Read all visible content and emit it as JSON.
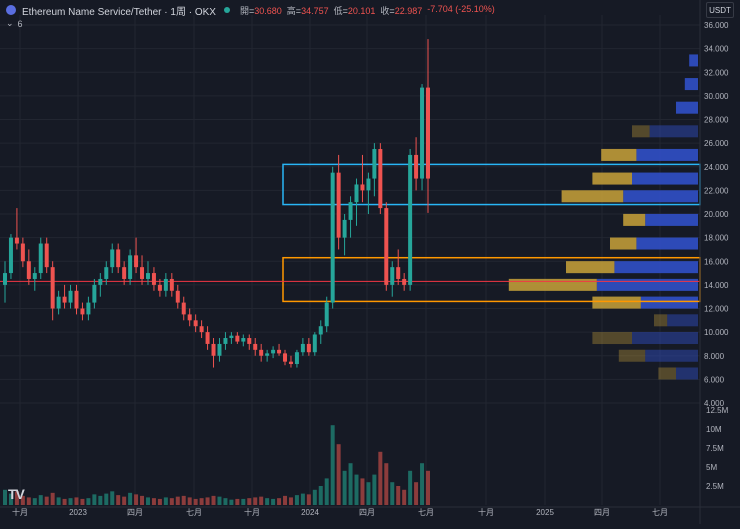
{
  "header": {
    "symbol": "Ethereum Name Service/Tether · 1周 · OKX",
    "ohlc": [
      {
        "key": "開",
        "value": "30.680"
      },
      {
        "key": "高",
        "value": "34.757"
      },
      {
        "key": "低",
        "value": "20.101"
      },
      {
        "key": "收",
        "value": "22.987"
      },
      {
        "key": "",
        "value": "-7.704 (-25.10%)"
      }
    ],
    "indicator_toggle": "6"
  },
  "currency": "USDT",
  "logo": "TV",
  "colors": {
    "background": "#161a25",
    "up": "#26a69a",
    "down": "#ef5350",
    "volume_up": "#1d6b63",
    "volume_down": "#8c3c3c",
    "zone_top": "#29b6f6",
    "zone_bottom": "#ff9800",
    "hline": "#f23645",
    "profile_gold": "#c9a33a",
    "profile_blue": "#3050c8"
  },
  "chart_data": {
    "type": "candlestick",
    "price_axis": {
      "min": 4,
      "max": 36,
      "ticks": [
        "36.000",
        "34.000",
        "32.000",
        "30.000",
        "28.000",
        "26.000",
        "24.000",
        "22.000",
        "20.000",
        "18.000",
        "16.000",
        "14.000",
        "12.000",
        "10.000",
        "8.000",
        "6.000",
        "4.000"
      ]
    },
    "volume_axis": {
      "max": 12.5,
      "ticks": [
        "12.5M",
        "10M",
        "7.5M",
        "5M",
        "2.5M"
      ]
    },
    "time_axis": [
      "十月",
      "2023",
      "四月",
      "七月",
      "十月",
      "2024",
      "四月",
      "七月",
      "十月",
      "2025",
      "四月",
      "七月"
    ],
    "zones": [
      {
        "name": "upper-zone",
        "low": 20.8,
        "high": 24.2
      },
      {
        "name": "lower-zone",
        "low": 12.6,
        "high": 16.3
      }
    ],
    "hline": 14.3,
    "candles": [
      [
        14.0,
        16.0,
        12.5,
        15.0
      ],
      [
        15.0,
        18.3,
        14.5,
        18.0
      ],
      [
        18.0,
        20.5,
        17.0,
        17.5
      ],
      [
        17.5,
        18.0,
        15.5,
        16.0
      ],
      [
        16.0,
        17.0,
        14.0,
        14.5
      ],
      [
        14.5,
        15.5,
        13.5,
        15.0
      ],
      [
        15.0,
        18.0,
        14.5,
        17.5
      ],
      [
        17.5,
        18.0,
        15.0,
        15.5
      ],
      [
        15.5,
        16.0,
        11.0,
        12.0
      ],
      [
        12.0,
        13.5,
        11.5,
        13.0
      ],
      [
        13.0,
        14.0,
        12.0,
        12.5
      ],
      [
        12.5,
        14.0,
        12.0,
        13.5
      ],
      [
        13.5,
        14.0,
        11.5,
        12.0
      ],
      [
        12.0,
        12.5,
        11.0,
        11.5
      ],
      [
        11.5,
        13.0,
        11.0,
        12.5
      ],
      [
        12.5,
        14.5,
        12.0,
        14.0
      ],
      [
        14.0,
        15.0,
        13.0,
        14.5
      ],
      [
        14.5,
        16.0,
        14.0,
        15.5
      ],
      [
        15.5,
        17.5,
        15.0,
        17.0
      ],
      [
        17.0,
        17.5,
        15.0,
        15.5
      ],
      [
        15.5,
        16.0,
        14.0,
        14.5
      ],
      [
        14.5,
        17.0,
        14.0,
        16.5
      ],
      [
        16.5,
        18.0,
        15.0,
        15.5
      ],
      [
        15.5,
        16.5,
        14.0,
        14.5
      ],
      [
        14.5,
        16.0,
        14.0,
        15.0
      ],
      [
        15.0,
        15.5,
        13.5,
        14.0
      ],
      [
        14.0,
        14.5,
        13.0,
        13.5
      ],
      [
        13.5,
        15.0,
        13.0,
        14.5
      ],
      [
        14.5,
        15.0,
        13.0,
        13.5
      ],
      [
        13.5,
        14.0,
        12.0,
        12.5
      ],
      [
        12.5,
        13.0,
        11.0,
        11.5
      ],
      [
        11.5,
        12.0,
        10.5,
        11.0
      ],
      [
        11.0,
        11.5,
        10.0,
        10.5
      ],
      [
        10.5,
        11.0,
        9.5,
        10.0
      ],
      [
        10.0,
        10.5,
        8.5,
        9.0
      ],
      [
        9.0,
        9.5,
        7.0,
        8.0
      ],
      [
        8.0,
        9.5,
        7.5,
        9.0
      ],
      [
        9.0,
        10.0,
        8.5,
        9.5
      ],
      [
        9.5,
        10.0,
        9.0,
        9.7
      ],
      [
        9.7,
        10.0,
        9.0,
        9.2
      ],
      [
        9.2,
        9.8,
        8.8,
        9.5
      ],
      [
        9.5,
        9.8,
        8.5,
        9.0
      ],
      [
        9.0,
        9.5,
        8.0,
        8.5
      ],
      [
        8.5,
        9.0,
        7.5,
        8.0
      ],
      [
        8.0,
        8.5,
        7.5,
        8.2
      ],
      [
        8.2,
        8.8,
        7.8,
        8.5
      ],
      [
        8.5,
        9.0,
        8.0,
        8.2
      ],
      [
        8.2,
        8.5,
        7.2,
        7.5
      ],
      [
        7.5,
        8.0,
        7.0,
        7.3
      ],
      [
        7.3,
        8.5,
        7.0,
        8.3
      ],
      [
        8.3,
        9.5,
        8.0,
        9.0
      ],
      [
        9.0,
        9.5,
        8.0,
        8.3
      ],
      [
        8.3,
        10.0,
        8.0,
        9.8
      ],
      [
        9.8,
        11.0,
        9.0,
        10.5
      ],
      [
        10.5,
        13.0,
        10.0,
        12.5
      ],
      [
        12.5,
        24.0,
        12.0,
        23.5
      ],
      [
        23.5,
        25.0,
        17.0,
        18.0
      ],
      [
        18.0,
        20.0,
        16.5,
        19.5
      ],
      [
        19.5,
        21.5,
        18.0,
        21.0
      ],
      [
        21.0,
        23.0,
        19.0,
        22.5
      ],
      [
        22.5,
        25.0,
        21.0,
        22.0
      ],
      [
        22.0,
        23.5,
        20.0,
        23.0
      ],
      [
        23.0,
        26.0,
        21.5,
        25.5
      ],
      [
        25.5,
        26.0,
        20.0,
        20.5
      ],
      [
        20.5,
        21.0,
        13.5,
        14.0
      ],
      [
        14.0,
        16.0,
        13.0,
        15.5
      ],
      [
        15.5,
        17.0,
        14.0,
        14.5
      ],
      [
        14.5,
        15.0,
        13.5,
        14.0
      ],
      [
        14.0,
        25.5,
        13.5,
        25.0
      ],
      [
        25.0,
        26.5,
        22.0,
        23.0
      ],
      [
        23.0,
        31.0,
        22.0,
        30.7
      ],
      [
        30.7,
        34.8,
        20.1,
        23.0
      ]
    ],
    "volumes": [
      2.0,
      1.5,
      1.8,
      1.2,
      1.0,
      0.9,
      1.3,
      1.1,
      1.6,
      1.0,
      0.8,
      0.9,
      1.0,
      0.8,
      0.9,
      1.4,
      1.2,
      1.5,
      1.8,
      1.3,
      1.1,
      1.6,
      1.4,
      1.2,
      1.0,
      0.9,
      0.8,
      1.0,
      0.9,
      1.1,
      1.2,
      1.0,
      0.8,
      0.9,
      1.0,
      1.2,
      1.1,
      0.9,
      0.7,
      0.8,
      0.8,
      0.9,
      1.0,
      1.1,
      0.9,
      0.8,
      0.9,
      1.2,
      1.0,
      1.3,
      1.5,
      1.4,
      2.0,
      2.5,
      3.5,
      10.5,
      8.0,
      4.5,
      5.5,
      4.0,
      3.5,
      3.0,
      4.0,
      7.0,
      5.5,
      3.0,
      2.5,
      2.0,
      4.5,
      3.0,
      5.5,
      4.5
    ],
    "volume_profile": [
      {
        "price": 33.0,
        "gold": 0.0,
        "blue": 0.04,
        "gold_dim": 0
      },
      {
        "price": 31.0,
        "gold": 0.0,
        "blue": 0.06,
        "gold_dim": 0
      },
      {
        "price": 29.0,
        "gold": 0.0,
        "blue": 0.1,
        "gold_dim": 0
      },
      {
        "price": 27.0,
        "gold": 0.08,
        "blue": 0.22,
        "gold_dim": 1
      },
      {
        "price": 25.0,
        "gold": 0.16,
        "blue": 0.28,
        "gold_dim": 0
      },
      {
        "price": 23.0,
        "gold": 0.18,
        "blue": 0.3,
        "gold_dim": 0
      },
      {
        "price": 21.5,
        "gold": 0.28,
        "blue": 0.34,
        "gold_dim": 0
      },
      {
        "price": 19.5,
        "gold": 0.1,
        "blue": 0.24,
        "gold_dim": 0
      },
      {
        "price": 17.5,
        "gold": 0.12,
        "blue": 0.28,
        "gold_dim": 0
      },
      {
        "price": 15.5,
        "gold": 0.22,
        "blue": 0.38,
        "gold_dim": 0
      },
      {
        "price": 14.0,
        "gold": 0.4,
        "blue": 0.46,
        "gold_dim": 0
      },
      {
        "price": 12.5,
        "gold": 0.22,
        "blue": 0.26,
        "gold_dim": 0
      },
      {
        "price": 11.0,
        "gold": 0.06,
        "blue": 0.14,
        "gold_dim": 1
      },
      {
        "price": 9.5,
        "gold": 0.18,
        "blue": 0.3,
        "gold_dim": 1
      },
      {
        "price": 8.0,
        "gold": 0.12,
        "blue": 0.24,
        "gold_dim": 1
      },
      {
        "price": 6.5,
        "gold": 0.08,
        "blue": 0.1,
        "gold_dim": 1
      }
    ]
  }
}
